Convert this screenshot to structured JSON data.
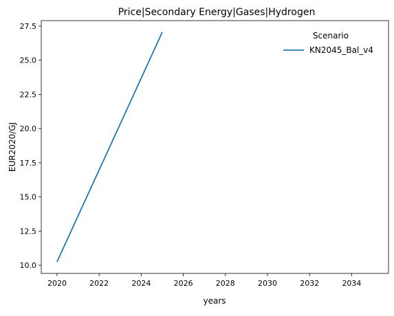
{
  "chart_data": {
    "type": "line",
    "title": "Price|Secondary Energy|Gases|Hydrogen",
    "xlabel": "years",
    "ylabel": "EUR2020/GJ",
    "xlim": [
      2019.25,
      2035.75
    ],
    "ylim": [
      9.4,
      27.9
    ],
    "x_ticks": [
      2020,
      2022,
      2024,
      2026,
      2028,
      2030,
      2032,
      2034
    ],
    "y_ticks": [
      10.0,
      12.5,
      15.0,
      17.5,
      20.0,
      22.5,
      25.0,
      27.5
    ],
    "grid": false,
    "legend": {
      "title": "Scenario",
      "position": "top-right"
    },
    "series": [
      {
        "name": "KN2045_Bal_v4",
        "color": "#1f77b4",
        "x": [
          2020,
          2025
        ],
        "y": [
          10.25,
          27.05
        ]
      }
    ]
  }
}
